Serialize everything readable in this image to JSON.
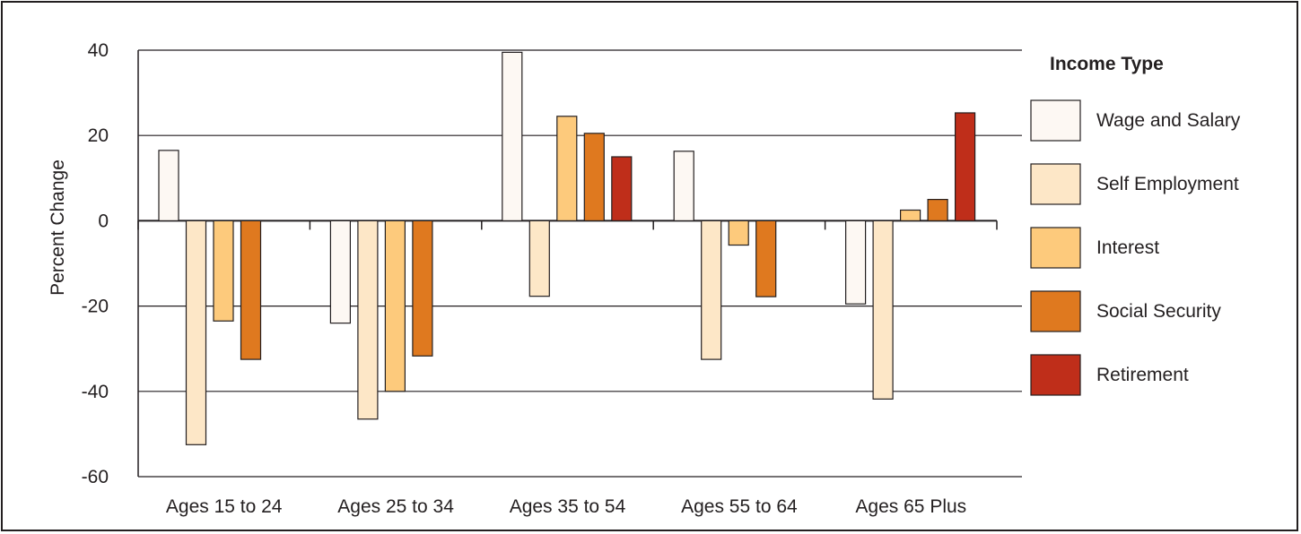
{
  "chart_data": {
    "type": "bar",
    "title": "",
    "xlabel": "",
    "ylabel": "Percent Change",
    "ylim": [
      -60,
      40
    ],
    "yticks": [
      40,
      20,
      0,
      -20,
      -40,
      -60
    ],
    "grid": true,
    "legend_title": "Income Type",
    "legend_position": "right",
    "categories": [
      "Ages 15 to 24",
      "Ages 25 to 34",
      "Ages 35 to 54",
      "Ages 55 to 64",
      "Ages 65 Plus"
    ],
    "series": [
      {
        "name": "Wage and Salary",
        "color": "#fdf8f3",
        "values": [
          16.5,
          -24,
          39.5,
          16.3,
          -19.5
        ]
      },
      {
        "name": "Self Employment",
        "color": "#fde7c7",
        "values": [
          -52.5,
          -46.5,
          -17.7,
          -32.5,
          -41.8
        ]
      },
      {
        "name": "Interest",
        "color": "#fdca7c",
        "values": [
          -23.5,
          -40,
          24.5,
          -5.7,
          2.5
        ]
      },
      {
        "name": "Social Security",
        "color": "#df791f",
        "values": [
          -32.5,
          -31.7,
          20.5,
          -17.8,
          5.0
        ]
      },
      {
        "name": "Retirement",
        "color": "#bf2e1a",
        "values": [
          null,
          null,
          15.0,
          null,
          25.3
        ]
      }
    ]
  }
}
